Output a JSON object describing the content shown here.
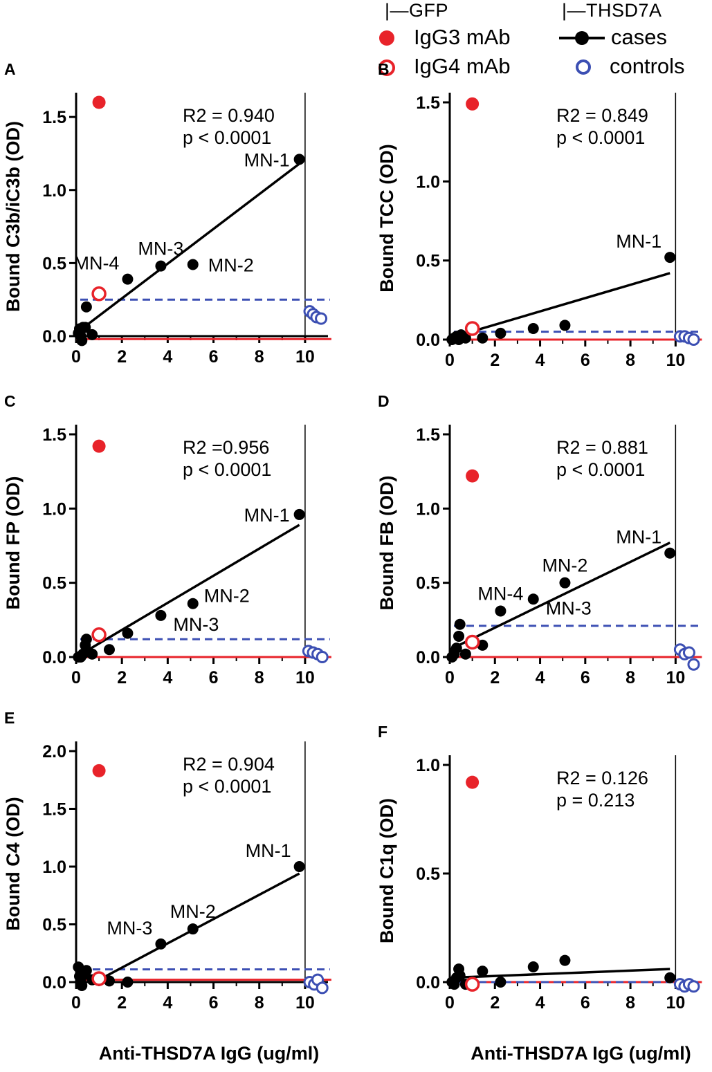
{
  "legend": {
    "group_gfp": "|—GFP",
    "group_thsd7a": "|—THSD7A",
    "igg3": "IgG3 mAb",
    "igg4": "IgG4 mAb",
    "cases": "cases",
    "controls": "controls"
  },
  "colors": {
    "red": "#e8232a",
    "blue": "#3c4fb3",
    "black": "#000000"
  },
  "chart_data": [
    {
      "panel": "A",
      "type": "scatter",
      "ylabel": "Bound C3b/iC3b (OD)",
      "xlabel": "",
      "xlim": [
        0,
        11
      ],
      "ylim": [
        0,
        1.6
      ],
      "xticks": [
        0,
        2,
        4,
        6,
        8,
        10
      ],
      "xtick_labels": [
        "0",
        "2",
        "4",
        "6",
        "8",
        "10"
      ],
      "yticks": [
        0,
        0.5,
        1.0,
        1.5
      ],
      "ytick_labels": [
        "0.0",
        "0.5",
        "1.0",
        "1.5"
      ],
      "stats": [
        "R2 = 0.940",
        "p < 0.0001"
      ],
      "igg3": [
        1.0,
        1.6
      ],
      "igg4": [
        1.0,
        0.29
      ],
      "cases": [
        [
          0.1,
          0.02
        ],
        [
          0.15,
          0.05
        ],
        [
          0.2,
          0.0
        ],
        [
          0.25,
          -0.03
        ],
        [
          0.3,
          0.06
        ],
        [
          0.4,
          0.06
        ],
        [
          0.45,
          0.2
        ],
        [
          0.7,
          0.01
        ],
        [
          2.25,
          0.39
        ],
        [
          3.7,
          0.48
        ],
        [
          5.1,
          0.49
        ],
        [
          9.75,
          1.21
        ]
      ],
      "controls": [
        [
          10.2,
          0.17
        ],
        [
          10.35,
          0.15
        ],
        [
          10.5,
          0.13
        ],
        [
          10.7,
          0.12
        ]
      ],
      "fit": [
        [
          0.0,
          0.02
        ],
        [
          9.75,
          1.18
        ]
      ],
      "neg_line": -0.02,
      "cutoff": 0.25,
      "vline": 10,
      "labels": [
        {
          "text": "MN-1",
          "x": 9.75,
          "y": 1.21,
          "pos": "left"
        },
        {
          "text": "MN-3",
          "x": 3.7,
          "y": 0.48,
          "pos": "above"
        },
        {
          "text": "MN-4",
          "x": 2.25,
          "y": 0.39,
          "pos": "left-above"
        },
        {
          "text": "MN-2",
          "x": 5.1,
          "y": 0.49,
          "pos": "right"
        }
      ]
    },
    {
      "panel": "B",
      "type": "scatter",
      "ylabel": "Bound TCC (OD)",
      "xlabel": "",
      "xlim": [
        0,
        11
      ],
      "ylim": [
        0,
        1.5
      ],
      "xticks": [
        0,
        2,
        4,
        6,
        8,
        10
      ],
      "xtick_labels": [
        "0",
        "2",
        "4",
        "6",
        "8",
        "10"
      ],
      "yticks": [
        0,
        0.5,
        1.0,
        1.5
      ],
      "ytick_labels": [
        "0.0",
        "0.5",
        "1.0",
        "1.5"
      ],
      "stats": [
        "R2 = 0.849",
        "p < 0.0001"
      ],
      "igg3": [
        1.0,
        1.49
      ],
      "igg4": [
        1.0,
        0.07
      ],
      "cases": [
        [
          0.1,
          0.0
        ],
        [
          0.2,
          0.01
        ],
        [
          0.3,
          0.02
        ],
        [
          0.4,
          0.0
        ],
        [
          0.5,
          0.03
        ],
        [
          0.7,
          0.01
        ],
        [
          1.45,
          0.01
        ],
        [
          2.25,
          0.04
        ],
        [
          3.7,
          0.07
        ],
        [
          5.1,
          0.09
        ],
        [
          9.75,
          0.52
        ]
      ],
      "controls": [
        [
          10.2,
          0.02
        ],
        [
          10.4,
          0.02
        ],
        [
          10.6,
          0.01
        ],
        [
          10.8,
          0.0
        ]
      ],
      "fit": [
        [
          0.0,
          0.01
        ],
        [
          9.75,
          0.42
        ]
      ],
      "neg_line": 0.0,
      "cutoff": 0.05,
      "vline": 10,
      "labels": [
        {
          "text": "MN-1",
          "x": 9.75,
          "y": 0.52,
          "pos": "left-above"
        }
      ]
    },
    {
      "panel": "C",
      "type": "scatter",
      "ylabel": "Bound FP (OD)",
      "xlabel": "",
      "xlim": [
        0,
        11
      ],
      "ylim": [
        0,
        1.5
      ],
      "xticks": [
        0,
        2,
        4,
        6,
        8,
        10
      ],
      "xtick_labels": [
        "0",
        "2",
        "4",
        "6",
        "8",
        "10"
      ],
      "yticks": [
        0,
        0.5,
        1.0,
        1.5
      ],
      "ytick_labels": [
        "0.0",
        "0.5",
        "1.0",
        "1.5"
      ],
      "stats": [
        "R2 =0.956",
        "p < 0.0001"
      ],
      "igg3": [
        1.0,
        1.42
      ],
      "igg4": [
        1.0,
        0.15
      ],
      "cases": [
        [
          0.1,
          0.0
        ],
        [
          0.2,
          0.0
        ],
        [
          0.3,
          0.02
        ],
        [
          0.4,
          0.08
        ],
        [
          0.45,
          0.12
        ],
        [
          0.7,
          0.02
        ],
        [
          1.45,
          0.05
        ],
        [
          2.25,
          0.16
        ],
        [
          3.7,
          0.28
        ],
        [
          5.1,
          0.36
        ],
        [
          9.75,
          0.96
        ]
      ],
      "controls": [
        [
          10.15,
          0.04
        ],
        [
          10.35,
          0.03
        ],
        [
          10.55,
          0.02
        ],
        [
          10.75,
          0.0
        ]
      ],
      "fit": [
        [
          0.0,
          0.0
        ],
        [
          9.75,
          0.89
        ]
      ],
      "neg_line": 0.0,
      "cutoff": 0.12,
      "vline": 10,
      "labels": [
        {
          "text": "MN-1",
          "x": 9.75,
          "y": 0.96,
          "pos": "left"
        },
        {
          "text": "MN-2",
          "x": 5.1,
          "y": 0.36,
          "pos": "right-above"
        },
        {
          "text": "MN-3",
          "x": 3.7,
          "y": 0.28,
          "pos": "right-below"
        }
      ]
    },
    {
      "panel": "D",
      "type": "scatter",
      "ylabel": "Bound FB (OD)",
      "xlabel": "",
      "xlim": [
        0,
        11
      ],
      "ylim": [
        0,
        1.5
      ],
      "xticks": [
        0,
        2,
        4,
        6,
        8,
        10
      ],
      "xtick_labels": [
        "0",
        "2",
        "4",
        "6",
        "8",
        "10"
      ],
      "yticks": [
        0,
        0.5,
        1.0,
        1.5
      ],
      "ytick_labels": [
        "0.0",
        "0.5",
        "1.0",
        "1.5"
      ],
      "stats": [
        "R2 = 0.881",
        "p < 0.0001"
      ],
      "igg3": [
        1.0,
        1.22
      ],
      "igg4": [
        1.0,
        0.1
      ],
      "cases": [
        [
          0.1,
          0.0
        ],
        [
          0.2,
          0.02
        ],
        [
          0.3,
          0.06
        ],
        [
          0.4,
          0.14
        ],
        [
          0.45,
          0.22
        ],
        [
          0.7,
          0.02
        ],
        [
          1.45,
          0.08
        ],
        [
          2.25,
          0.31
        ],
        [
          3.7,
          0.39
        ],
        [
          5.1,
          0.5
        ],
        [
          9.75,
          0.7
        ]
      ],
      "controls": [
        [
          10.2,
          0.05
        ],
        [
          10.4,
          0.02
        ],
        [
          10.6,
          0.03
        ],
        [
          10.8,
          -0.05
        ]
      ],
      "fit": [
        [
          0.0,
          0.05
        ],
        [
          9.75,
          0.77
        ]
      ],
      "neg_line": 0.0,
      "cutoff": 0.21,
      "vline": 10,
      "labels": [
        {
          "text": "MN-1",
          "x": 9.75,
          "y": 0.7,
          "pos": "left-above"
        },
        {
          "text": "MN-2",
          "x": 5.1,
          "y": 0.5,
          "pos": "above"
        },
        {
          "text": "MN-4",
          "x": 2.25,
          "y": 0.31,
          "pos": "above"
        },
        {
          "text": "MN-3",
          "x": 3.7,
          "y": 0.39,
          "pos": "right-below"
        }
      ]
    },
    {
      "panel": "E",
      "type": "scatter",
      "ylabel": "Bound C4 (OD)",
      "xlabel": "Anti-THSD7A IgG (ug/ml)",
      "xlim": [
        0,
        11
      ],
      "ylim": [
        0,
        2.0
      ],
      "xticks": [
        0,
        2,
        4,
        6,
        8,
        10
      ],
      "xtick_labels": [
        "0",
        "2",
        "4",
        "6",
        "8",
        "10"
      ],
      "yticks": [
        0,
        0.5,
        1.0,
        1.5,
        2.0
      ],
      "ytick_labels": [
        "0.0",
        "0.5",
        "1.0",
        "1.5",
        "2.0"
      ],
      "stats": [
        "R2 = 0.904",
        "p < 0.0001"
      ],
      "igg3": [
        1.0,
        1.83
      ],
      "igg4": [
        1.0,
        0.03
      ],
      "cases": [
        [
          0.1,
          0.13
        ],
        [
          0.15,
          0.05
        ],
        [
          0.2,
          0.0
        ],
        [
          0.25,
          -0.03
        ],
        [
          0.3,
          0.06
        ],
        [
          0.4,
          0.08
        ],
        [
          0.45,
          0.1
        ],
        [
          0.7,
          0.02
        ],
        [
          1.45,
          0.01
        ],
        [
          2.25,
          0.0
        ],
        [
          3.7,
          0.33
        ],
        [
          5.1,
          0.46
        ],
        [
          9.75,
          1.0
        ]
      ],
      "controls": [
        [
          10.2,
          0.0
        ],
        [
          10.4,
          -0.02
        ],
        [
          10.55,
          0.02
        ],
        [
          10.75,
          -0.05
        ]
      ],
      "fit": [
        [
          1.0,
          0.02
        ],
        [
          9.75,
          0.94
        ]
      ],
      "neg_line": 0.02,
      "cutoff": 0.11,
      "vline": 10,
      "labels": [
        {
          "text": "MN-1",
          "x": 9.75,
          "y": 1.0,
          "pos": "left-above"
        },
        {
          "text": "MN-2",
          "x": 5.1,
          "y": 0.46,
          "pos": "above"
        },
        {
          "text": "MN-3",
          "x": 3.7,
          "y": 0.33,
          "pos": "left-above"
        }
      ]
    },
    {
      "panel": "F",
      "type": "scatter",
      "ylabel": "Bound C1q (OD)",
      "xlabel": "Anti-THSD7A IgG (ug/ml)",
      "xlim": [
        0,
        11
      ],
      "ylim": [
        0,
        1.0
      ],
      "xticks": [
        0,
        2,
        4,
        6,
        8,
        10
      ],
      "xtick_labels": [
        "0",
        "2",
        "4",
        "6",
        "8",
        "10"
      ],
      "yticks": [
        0,
        0.5,
        1.0
      ],
      "ytick_labels": [
        "0.0",
        "0.5",
        "1.0"
      ],
      "stats": [
        "R2 = 0.126",
        "p = 0.213"
      ],
      "igg3": [
        1.0,
        0.92
      ],
      "igg4": [
        1.0,
        -0.01
      ],
      "cases": [
        [
          0.1,
          0.0
        ],
        [
          0.2,
          -0.01
        ],
        [
          0.3,
          0.02
        ],
        [
          0.4,
          0.06
        ],
        [
          0.45,
          0.03
        ],
        [
          0.7,
          -0.01
        ],
        [
          1.45,
          0.05
        ],
        [
          2.25,
          0.0
        ],
        [
          3.7,
          0.07
        ],
        [
          5.1,
          0.1
        ],
        [
          9.75,
          0.02
        ]
      ],
      "controls": [
        [
          10.2,
          -0.01
        ],
        [
          10.4,
          -0.02
        ],
        [
          10.6,
          -0.01
        ],
        [
          10.8,
          -0.02
        ]
      ],
      "fit": [
        [
          0.0,
          0.02
        ],
        [
          9.75,
          0.06
        ]
      ],
      "neg_line": 0.0,
      "cutoff": 0.0,
      "vline": 10,
      "labels": []
    }
  ]
}
